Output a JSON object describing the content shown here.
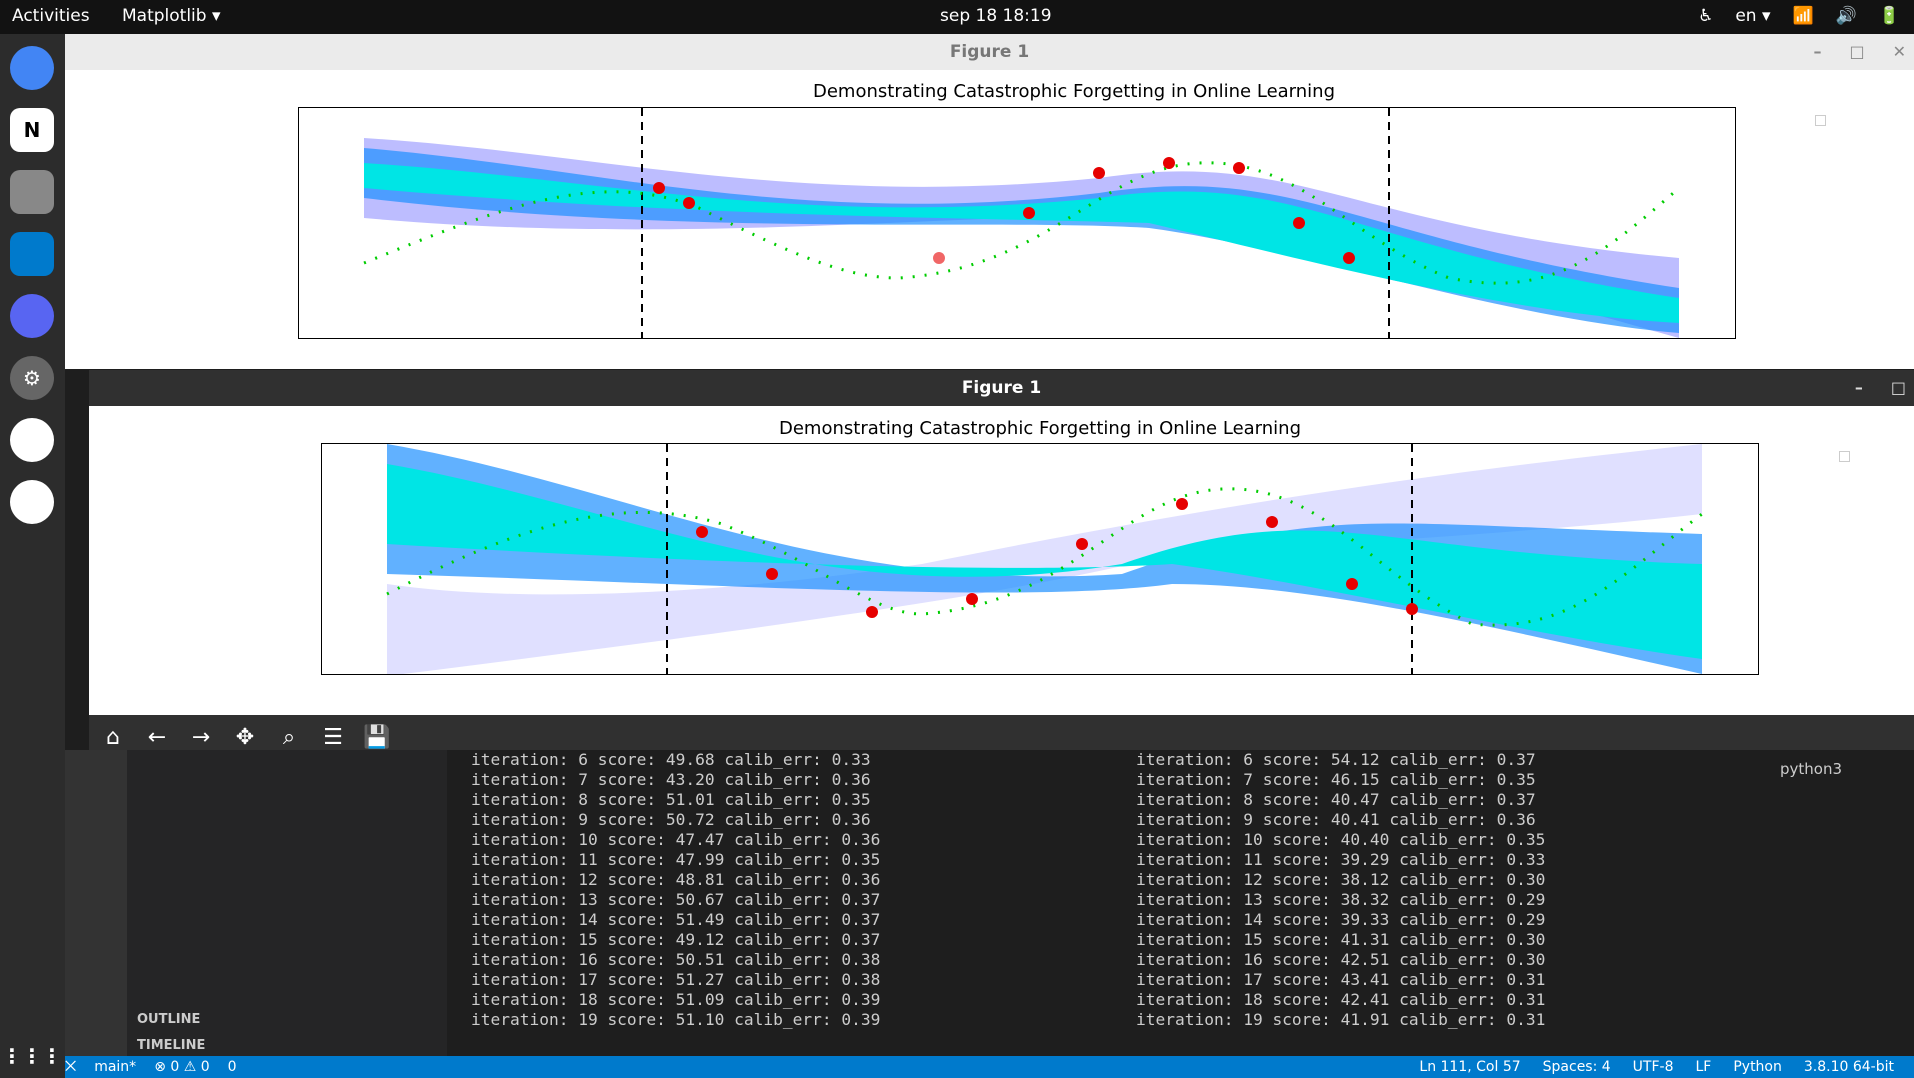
{
  "topbar": {
    "activities": "Activities",
    "app_menu": "Matplotlib ▾",
    "clock": "sep 18  18:19",
    "language": "en ▾"
  },
  "figure_back": {
    "window_title": "Figure 1",
    "plot_title": "Demonstrating Catastrophic Forgetting in Online Learning"
  },
  "figure_front": {
    "window_title": "Figure 1",
    "plot_title": "Demonstrating Catastrophic Forgetting in Online Learning"
  },
  "toolbar": {
    "icons": [
      "home-icon",
      "back-arrow-icon",
      "forward-arrow-icon",
      "pan-icon",
      "zoom-icon",
      "configure-icon",
      "save-icon"
    ]
  },
  "sidebar": {
    "outline": "OUTLINE",
    "timeline": "TIMELINE"
  },
  "terminal_left": [
    "iteration: 6 score: 49.68 calib_err: 0.33",
    "iteration: 7 score: 43.20 calib_err: 0.36",
    "iteration: 8 score: 51.01 calib_err: 0.35",
    "iteration: 9 score: 50.72 calib_err: 0.36",
    "iteration: 10 score: 47.47 calib_err: 0.36",
    "iteration: 11 score: 47.99 calib_err: 0.35",
    "iteration: 12 score: 48.81 calib_err: 0.36",
    "iteration: 13 score: 50.67 calib_err: 0.37",
    "iteration: 14 score: 51.49 calib_err: 0.37",
    "iteration: 15 score: 49.12 calib_err: 0.37",
    "iteration: 16 score: 50.51 calib_err: 0.38",
    "iteration: 17 score: 51.27 calib_err: 0.38",
    "iteration: 18 score: 51.09 calib_err: 0.39",
    "iteration: 19 score: 51.10 calib_err: 0.39"
  ],
  "terminal_right": [
    "iteration: 6 score: 54.12 calib_err: 0.37",
    "iteration: 7 score: 46.15 calib_err: 0.35",
    "iteration: 8 score: 40.47 calib_err: 0.37",
    "iteration: 9 score: 40.41 calib_err: 0.36",
    "iteration: 10 score: 40.40 calib_err: 0.35",
    "iteration: 11 score: 39.29 calib_err: 0.33",
    "iteration: 12 score: 38.12 calib_err: 0.30",
    "iteration: 13 score: 38.32 calib_err: 0.29",
    "iteration: 14 score: 39.33 calib_err: 0.29",
    "iteration: 15 score: 41.31 calib_err: 0.30",
    "iteration: 16 score: 42.51 calib_err: 0.30",
    "iteration: 17 score: 43.41 calib_err: 0.31",
    "iteration: 18 score: 42.41 calib_err: 0.31",
    "iteration: 19 score: 41.91 calib_err: 0.31"
  ],
  "kernel": "python3",
  "statusbar": {
    "branch": "main*",
    "problems": "⊗ 0 ⚠ 0",
    "ports": "0",
    "position": "Ln 111, Col 57",
    "spaces": "Spaces: 4",
    "encoding": "UTF-8",
    "eol": "LF",
    "language": "Python",
    "interpreter": "3.8.10 64-bit"
  },
  "colors": {
    "band_inner": "#00e5e5",
    "band_mid": "#1e90ff",
    "band_outer": "#6a6aff",
    "points": "#00cc00",
    "markers": "#e60000"
  }
}
